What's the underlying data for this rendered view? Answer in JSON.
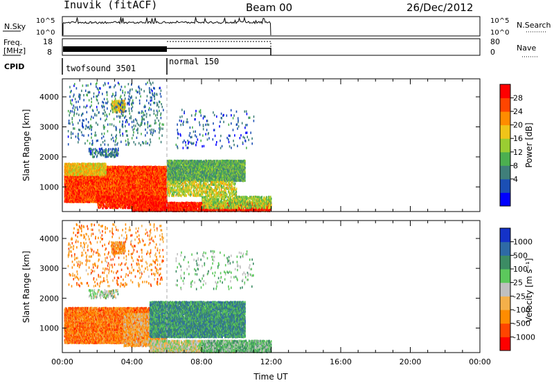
{
  "header": {
    "title": "Inuvik (fitACF)",
    "beam": "Beam 00",
    "date": "26/Dec/2012"
  },
  "top_panels": {
    "nsky_label": "N.Sky",
    "nsky_ticks": [
      "10^5",
      "10^0"
    ],
    "nsearch_label": "N.Search",
    "freq_label_1": "Freq.",
    "freq_label_2": "[MHz]",
    "freq_ticks": [
      "18",
      "8"
    ],
    "nave_ticks": [
      "80",
      "0"
    ],
    "nave_label": "Nave",
    "cpid_label": "CPID",
    "cpid_modes": [
      "twofsound 3501",
      "normal 150"
    ]
  },
  "chart_data": [
    {
      "type": "heatmap",
      "name": "power",
      "ylabel": "Slant Range [km]",
      "xlabel": "",
      "xlim_hours": [
        0,
        24
      ],
      "ylim_km": [
        180,
        4600
      ],
      "yticks": [
        1000,
        2000,
        3000,
        4000
      ],
      "colorbar_label": "Power [dB]",
      "colorbar_ticks": [
        "28",
        "24",
        "20",
        "16",
        "12",
        "8",
        "4"
      ],
      "colors": [
        "#0000ff",
        "#1b4fb4",
        "#3f7f7a",
        "#4caf50",
        "#9acd32",
        "#f0c419",
        "#ff8c00",
        "#ff4500",
        "#ff0000"
      ],
      "blobs": [
        {
          "t0": 0.1,
          "t1": 6.0,
          "r0": 500,
          "r1": 1700,
          "v": 0.85,
          "d": 0.95
        },
        {
          "t0": 0.1,
          "t1": 2.5,
          "r0": 1400,
          "r1": 1800,
          "v": 0.62,
          "d": 0.8
        },
        {
          "t0": 2.0,
          "t1": 6.0,
          "r0": 300,
          "r1": 700,
          "v": 0.9,
          "d": 0.75
        },
        {
          "t0": 4.0,
          "t1": 12.0,
          "r0": 200,
          "r1": 500,
          "v": 0.92,
          "d": 0.8
        },
        {
          "t0": 6.0,
          "t1": 10.5,
          "r0": 1200,
          "r1": 1900,
          "v": 0.38,
          "d": 0.85
        },
        {
          "t0": 6.0,
          "t1": 10.0,
          "r0": 700,
          "r1": 1200,
          "v": 0.55,
          "d": 0.45
        },
        {
          "t0": 8.0,
          "t1": 12.0,
          "r0": 300,
          "r1": 700,
          "v": 0.5,
          "d": 0.55
        },
        {
          "t0": 2.8,
          "t1": 3.6,
          "r0": 3500,
          "r1": 3900,
          "v": 0.6,
          "d": 0.6
        },
        {
          "t0": 1.5,
          "t1": 3.2,
          "r0": 2000,
          "r1": 2300,
          "v": 0.25,
          "d": 0.35
        },
        {
          "t0": 0.3,
          "t1": 5.8,
          "r0": 2400,
          "r1": 4500,
          "v": 0.25,
          "d": 0.06
        },
        {
          "t0": 6.5,
          "t1": 11.0,
          "r0": 2300,
          "r1": 3600,
          "v": 0.2,
          "d": 0.04
        }
      ]
    },
    {
      "type": "heatmap",
      "name": "velocity",
      "ylabel": "Slant Range [km]",
      "xlabel": "Time UT",
      "xlim_hours": [
        0,
        24
      ],
      "ylim_km": [
        180,
        4600
      ],
      "yticks": [
        1000,
        2000,
        3000,
        4000
      ],
      "xtick_labels": [
        "00:00",
        "04:00",
        "08:00",
        "12:00",
        "16:00",
        "20:00",
        "00:00"
      ],
      "colorbar_label": "Velocity [m s⁻¹]",
      "colorbar_ticks": [
        "1000",
        "500",
        "100",
        "25",
        "-25",
        "-100",
        "-500",
        "-1000"
      ],
      "colors": [
        "#ff0000",
        "#ff4500",
        "#ff8c00",
        "#f4b04a",
        "#c0c0c0",
        "#5cc85c",
        "#3c8c64",
        "#2e6aa6",
        "#1432c8"
      ],
      "blobs": [
        {
          "t0": 0.1,
          "t1": 5.0,
          "r0": 500,
          "r1": 1700,
          "v": 0.25,
          "d": 0.9
        },
        {
          "t0": 3.5,
          "t1": 6.0,
          "r0": 400,
          "r1": 1500,
          "v": 0.35,
          "d": 0.7
        },
        {
          "t0": 5.0,
          "t1": 10.5,
          "r0": 700,
          "r1": 1900,
          "v": 0.72,
          "d": 0.85
        },
        {
          "t0": 5.0,
          "t1": 10.0,
          "r0": 200,
          "r1": 600,
          "v": 0.5,
          "d": 0.75
        },
        {
          "t0": 8.0,
          "t1": 12.0,
          "r0": 200,
          "r1": 600,
          "v": 0.62,
          "d": 0.8
        },
        {
          "t0": 2.8,
          "t1": 3.6,
          "r0": 3500,
          "r1": 3900,
          "v": 0.3,
          "d": 0.6
        },
        {
          "t0": 1.5,
          "t1": 3.2,
          "r0": 2000,
          "r1": 2300,
          "v": 0.55,
          "d": 0.3
        },
        {
          "t0": 0.3,
          "t1": 5.8,
          "r0": 2400,
          "r1": 4500,
          "v": 0.3,
          "d": 0.06
        },
        {
          "t0": 6.5,
          "t1": 11.0,
          "r0": 2300,
          "r1": 3600,
          "v": 0.6,
          "d": 0.04
        }
      ]
    }
  ]
}
